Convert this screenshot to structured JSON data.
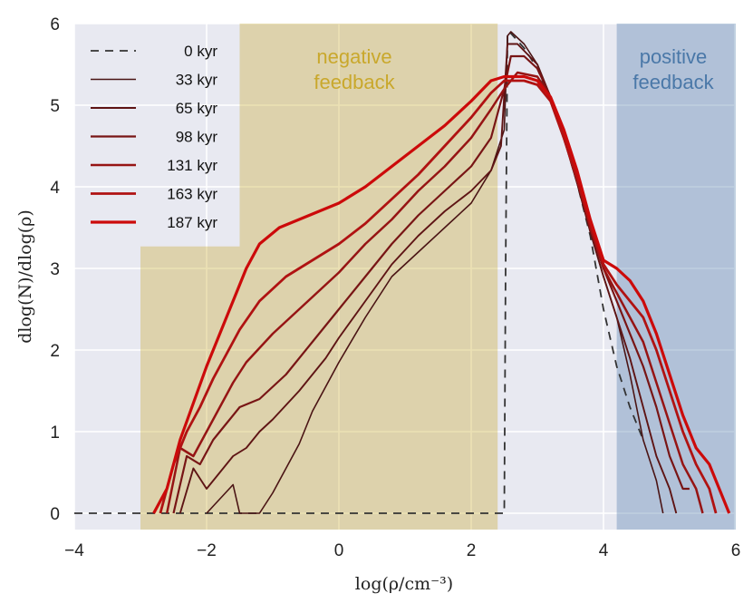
{
  "chart_data": {
    "type": "line",
    "title": "",
    "xlabel": "log(ρ/cm⁻³)",
    "ylabel": "dlog(N)/dlog(ρ)",
    "xlim": [
      -4,
      6
    ],
    "ylim": [
      -0.2,
      6
    ],
    "xticks": [
      "−4",
      "−2",
      "0",
      "2",
      "4",
      "6"
    ],
    "yticks": [
      "0",
      "1",
      "2",
      "3",
      "4",
      "5",
      "6"
    ],
    "grid": true,
    "legend_position": "top-left",
    "regions": [
      {
        "label_line1": "negative",
        "label_line2": "feedback",
        "color": "#c9a82c",
        "x_range": [
          -3,
          2.4
        ]
      },
      {
        "label_line1": "positive",
        "label_line2": "feedback",
        "color": "#4a78a8",
        "x_range": [
          4.2,
          6
        ]
      }
    ],
    "series": [
      {
        "name": "0 kyr",
        "color": "#333333",
        "style": "dashed",
        "points": [
          [
            -4,
            0
          ],
          [
            2.5,
            0
          ],
          [
            2.52,
            3
          ],
          [
            2.55,
            5.9
          ],
          [
            2.6,
            5.88
          ],
          [
            2.8,
            5.7
          ],
          [
            3.0,
            5.45
          ],
          [
            3.2,
            5.05
          ],
          [
            3.4,
            4.6
          ],
          [
            3.6,
            4.05
          ],
          [
            3.8,
            3.4
          ],
          [
            4.0,
            2.5
          ],
          [
            4.2,
            1.8
          ],
          [
            4.4,
            1.3
          ],
          [
            4.5,
            1.1
          ],
          [
            4.6,
            0.9
          ]
        ]
      },
      {
        "name": "33 kyr",
        "color": "#4a1414",
        "style": "solid",
        "points": [
          [
            -2.0,
            0
          ],
          [
            -1.6,
            0.35
          ],
          [
            -1.5,
            0
          ],
          [
            -1.2,
            0
          ],
          [
            -1.0,
            0.25
          ],
          [
            -0.8,
            0.55
          ],
          [
            -0.6,
            0.85
          ],
          [
            -0.4,
            1.25
          ],
          [
            -0.2,
            1.55
          ],
          [
            0,
            1.85
          ],
          [
            0.4,
            2.4
          ],
          [
            0.8,
            2.9
          ],
          [
            1.2,
            3.2
          ],
          [
            1.6,
            3.5
          ],
          [
            2.0,
            3.8
          ],
          [
            2.3,
            4.2
          ],
          [
            2.5,
            4.7
          ],
          [
            2.55,
            5.85
          ],
          [
            2.6,
            5.9
          ],
          [
            2.8,
            5.75
          ],
          [
            3.0,
            5.5
          ],
          [
            3.2,
            5.1
          ],
          [
            3.4,
            4.6
          ],
          [
            3.6,
            4.05
          ],
          [
            3.8,
            3.45
          ],
          [
            4.0,
            2.9
          ],
          [
            4.2,
            2.4
          ],
          [
            4.4,
            1.7
          ],
          [
            4.6,
            0.9
          ],
          [
            4.8,
            0.4
          ],
          [
            4.9,
            0
          ]
        ]
      },
      {
        "name": "65 kyr",
        "color": "#5e1414",
        "style": "solid",
        "points": [
          [
            -2.4,
            0
          ],
          [
            -2.2,
            0.55
          ],
          [
            -2.0,
            0.3
          ],
          [
            -1.8,
            0.5
          ],
          [
            -1.6,
            0.7
          ],
          [
            -1.4,
            0.8
          ],
          [
            -1.2,
            1.0
          ],
          [
            -1.0,
            1.15
          ],
          [
            -0.6,
            1.5
          ],
          [
            -0.2,
            1.9
          ],
          [
            0,
            2.15
          ],
          [
            0.4,
            2.6
          ],
          [
            0.8,
            3.05
          ],
          [
            1.2,
            3.4
          ],
          [
            1.6,
            3.7
          ],
          [
            2.0,
            3.95
          ],
          [
            2.3,
            4.2
          ],
          [
            2.45,
            4.5
          ],
          [
            2.55,
            5.75
          ],
          [
            2.7,
            5.75
          ],
          [
            3.0,
            5.5
          ],
          [
            3.2,
            5.1
          ],
          [
            3.4,
            4.6
          ],
          [
            3.6,
            4.05
          ],
          [
            3.8,
            3.45
          ],
          [
            4.0,
            2.9
          ],
          [
            4.2,
            2.4
          ],
          [
            4.4,
            1.9
          ],
          [
            4.6,
            1.3
          ],
          [
            4.8,
            0.7
          ],
          [
            5.0,
            0.3
          ],
          [
            5.1,
            0
          ]
        ]
      },
      {
        "name": "98 kyr",
        "color": "#781515",
        "style": "solid",
        "points": [
          [
            -2.5,
            0
          ],
          [
            -2.3,
            0.7
          ],
          [
            -2.1,
            0.6
          ],
          [
            -1.9,
            0.9
          ],
          [
            -1.7,
            1.1
          ],
          [
            -1.5,
            1.3
          ],
          [
            -1.2,
            1.4
          ],
          [
            -0.8,
            1.7
          ],
          [
            -0.4,
            2.1
          ],
          [
            0,
            2.5
          ],
          [
            0.4,
            2.9
          ],
          [
            0.8,
            3.3
          ],
          [
            1.2,
            3.65
          ],
          [
            1.6,
            3.95
          ],
          [
            2.0,
            4.25
          ],
          [
            2.3,
            4.6
          ],
          [
            2.5,
            5.2
          ],
          [
            2.6,
            5.6
          ],
          [
            2.8,
            5.6
          ],
          [
            3.0,
            5.45
          ],
          [
            3.2,
            5.1
          ],
          [
            3.4,
            4.6
          ],
          [
            3.6,
            4.1
          ],
          [
            3.8,
            3.5
          ],
          [
            4.0,
            3.0
          ],
          [
            4.2,
            2.6
          ],
          [
            4.4,
            2.2
          ],
          [
            4.6,
            1.8
          ],
          [
            4.8,
            1.3
          ],
          [
            5.0,
            0.7
          ],
          [
            5.2,
            0.3
          ],
          [
            5.3,
            0.3
          ]
        ]
      },
      {
        "name": "131 kyr",
        "color": "#961414",
        "style": "solid",
        "points": [
          [
            -2.6,
            0
          ],
          [
            -2.4,
            0.8
          ],
          [
            -2.2,
            0.7
          ],
          [
            -2.0,
            1.0
          ],
          [
            -1.8,
            1.3
          ],
          [
            -1.6,
            1.6
          ],
          [
            -1.4,
            1.85
          ],
          [
            -1.0,
            2.2
          ],
          [
            -0.6,
            2.5
          ],
          [
            -0.2,
            2.8
          ],
          [
            0,
            2.95
          ],
          [
            0.4,
            3.3
          ],
          [
            0.8,
            3.6
          ],
          [
            1.2,
            3.95
          ],
          [
            1.6,
            4.25
          ],
          [
            2.0,
            4.6
          ],
          [
            2.3,
            4.95
          ],
          [
            2.5,
            5.2
          ],
          [
            2.7,
            5.4
          ],
          [
            3.0,
            5.35
          ],
          [
            3.2,
            5.1
          ],
          [
            3.4,
            4.6
          ],
          [
            3.6,
            4.1
          ],
          [
            3.8,
            3.5
          ],
          [
            4.0,
            3.0
          ],
          [
            4.2,
            2.7
          ],
          [
            4.4,
            2.4
          ],
          [
            4.6,
            2.1
          ],
          [
            4.8,
            1.6
          ],
          [
            5.0,
            1.1
          ],
          [
            5.2,
            0.6
          ],
          [
            5.4,
            0.3
          ],
          [
            5.5,
            0
          ]
        ]
      },
      {
        "name": "163 kyr",
        "color": "#b01212",
        "style": "solid",
        "points": [
          [
            -2.7,
            0
          ],
          [
            -2.5,
            0.6
          ],
          [
            -2.3,
            1.0
          ],
          [
            -2.1,
            1.3
          ],
          [
            -1.9,
            1.65
          ],
          [
            -1.7,
            1.95
          ],
          [
            -1.5,
            2.25
          ],
          [
            -1.2,
            2.6
          ],
          [
            -0.8,
            2.9
          ],
          [
            -0.4,
            3.1
          ],
          [
            0,
            3.3
          ],
          [
            0.4,
            3.55
          ],
          [
            0.8,
            3.85
          ],
          [
            1.2,
            4.15
          ],
          [
            1.6,
            4.5
          ],
          [
            2.0,
            4.85
          ],
          [
            2.3,
            5.15
          ],
          [
            2.5,
            5.3
          ],
          [
            2.8,
            5.3
          ],
          [
            3.0,
            5.25
          ],
          [
            3.2,
            5.05
          ],
          [
            3.4,
            4.6
          ],
          [
            3.6,
            4.1
          ],
          [
            3.8,
            3.55
          ],
          [
            4.0,
            3.05
          ],
          [
            4.2,
            2.8
          ],
          [
            4.4,
            2.6
          ],
          [
            4.6,
            2.4
          ],
          [
            4.8,
            2.0
          ],
          [
            5.0,
            1.5
          ],
          [
            5.2,
            1.0
          ],
          [
            5.4,
            0.6
          ],
          [
            5.6,
            0.3
          ],
          [
            5.7,
            0
          ]
        ]
      },
      {
        "name": "187 kyr",
        "color": "#cc0a0a",
        "style": "solid",
        "points": [
          [
            -2.8,
            0
          ],
          [
            -2.6,
            0.3
          ],
          [
            -2.4,
            0.9
          ],
          [
            -2.2,
            1.35
          ],
          [
            -2.0,
            1.8
          ],
          [
            -1.8,
            2.2
          ],
          [
            -1.6,
            2.6
          ],
          [
            -1.4,
            3.0
          ],
          [
            -1.2,
            3.3
          ],
          [
            -0.9,
            3.5
          ],
          [
            -0.6,
            3.6
          ],
          [
            -0.3,
            3.7
          ],
          [
            0,
            3.8
          ],
          [
            0.4,
            4.0
          ],
          [
            0.8,
            4.25
          ],
          [
            1.2,
            4.5
          ],
          [
            1.6,
            4.75
          ],
          [
            2.0,
            5.05
          ],
          [
            2.3,
            5.3
          ],
          [
            2.5,
            5.35
          ],
          [
            2.8,
            5.35
          ],
          [
            3.0,
            5.3
          ],
          [
            3.2,
            5.1
          ],
          [
            3.4,
            4.7
          ],
          [
            3.6,
            4.2
          ],
          [
            3.8,
            3.6
          ],
          [
            4.0,
            3.1
          ],
          [
            4.2,
            3.0
          ],
          [
            4.4,
            2.85
          ],
          [
            4.6,
            2.6
          ],
          [
            4.8,
            2.2
          ],
          [
            5.0,
            1.7
          ],
          [
            5.2,
            1.2
          ],
          [
            5.4,
            0.8
          ],
          [
            5.6,
            0.6
          ],
          [
            5.8,
            0.2
          ],
          [
            5.9,
            0
          ]
        ]
      }
    ]
  }
}
